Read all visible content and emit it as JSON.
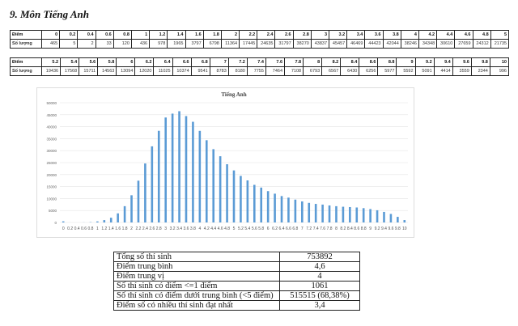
{
  "title": "9.  Môn Tiếng Anh",
  "score_table": {
    "row_label_score": "Điểm",
    "row_label_count": "Số lượng",
    "part1": {
      "scores": [
        "0",
        "0.2",
        "0.4",
        "0.6",
        "0.8",
        "1",
        "1.2",
        "1.4",
        "1.6",
        "1.8",
        "2",
        "2.2",
        "2.4",
        "2.6",
        "2.8",
        "3",
        "3.2",
        "3.4",
        "3.6",
        "3.8",
        "4",
        "4.2",
        "4.4",
        "4.6",
        "4.8",
        "5"
      ],
      "counts": [
        "465",
        "5",
        "2",
        "33",
        "120",
        "436",
        "978",
        "1965",
        "3797",
        "6798",
        "11364",
        "17445",
        "24635",
        "31797",
        "38270",
        "43837",
        "45457",
        "46469",
        "44423",
        "42044",
        "38246",
        "34348",
        "30610",
        "27659",
        "24312",
        "21735"
      ]
    },
    "part2": {
      "scores": [
        "5.2",
        "5.4",
        "5.6",
        "5.8",
        "6",
        "6.2",
        "6.4",
        "6.6",
        "6.8",
        "7",
        "7.2",
        "7.4",
        "7.6",
        "7.8",
        "8",
        "8.2",
        "8.4",
        "8.6",
        "8.8",
        "9",
        "9.2",
        "9.4",
        "9.6",
        "9.8",
        "10"
      ],
      "counts": [
        "19436",
        "17568",
        "15711",
        "14563",
        "13094",
        "12020",
        "11025",
        "10374",
        "9541",
        "8783",
        "8180",
        "7755",
        "7464",
        "7108",
        "6793",
        "6567",
        "6430",
        "6256",
        "5977",
        "5592",
        "5091",
        "4414",
        "3559",
        "2344",
        "996"
      ]
    }
  },
  "chart_data": {
    "type": "bar",
    "title": "Tiếng Anh",
    "xlabel": "",
    "ylabel": "",
    "categories": [
      "0",
      "0.2",
      "0.4",
      "0.6",
      "0.8",
      "1",
      "1.2",
      "1.4",
      "1.6",
      "1.8",
      "2",
      "2.2",
      "2.4",
      "2.6",
      "2.8",
      "3",
      "3.2",
      "3.4",
      "3.6",
      "3.8",
      "4",
      "4.2",
      "4.4",
      "4.6",
      "4.8",
      "5",
      "5.2",
      "5.4",
      "5.6",
      "5.8",
      "6",
      "6.2",
      "6.4",
      "6.6",
      "6.8",
      "7",
      "7.2",
      "7.4",
      "7.6",
      "7.8",
      "8",
      "8.2",
      "8.4",
      "8.6",
      "8.8",
      "9",
      "9.2",
      "9.4",
      "9.6",
      "9.8",
      "10"
    ],
    "values": [
      465,
      5,
      2,
      33,
      120,
      436,
      978,
      1965,
      3797,
      6798,
      11364,
      17445,
      24635,
      31797,
      38270,
      43837,
      45457,
      46469,
      44423,
      42044,
      38246,
      34348,
      30610,
      27659,
      24312,
      21735,
      19436,
      17568,
      15711,
      14563,
      13094,
      12020,
      11025,
      10374,
      9541,
      8783,
      8180,
      7755,
      7464,
      7108,
      6793,
      6567,
      6430,
      6256,
      5977,
      5592,
      5091,
      4414,
      3559,
      2344,
      996
    ],
    "ylim": [
      0,
      50000
    ],
    "yticks": [
      "0",
      "5000",
      "10000",
      "15000",
      "20000",
      "25000",
      "30000",
      "35000",
      "40000",
      "45000",
      "50000"
    ],
    "grid": true,
    "bar_color": "#5b9bd5"
  },
  "summary": [
    {
      "label": "Tổng số thí sinh",
      "value": "753892"
    },
    {
      "label": "Điểm trung bình",
      "value": "4,6"
    },
    {
      "label": "Điểm trung vị",
      "value": "4"
    },
    {
      "label": "Số thí sinh có điểm <=1 điểm",
      "value": "1061"
    },
    {
      "label": "Số thí sinh có điểm dưới trung bình (<5 điểm)",
      "value": "515515 (68,38%)"
    },
    {
      "label": "Điểm số có nhiều thí sinh đạt nhất",
      "value": "3,4"
    }
  ]
}
